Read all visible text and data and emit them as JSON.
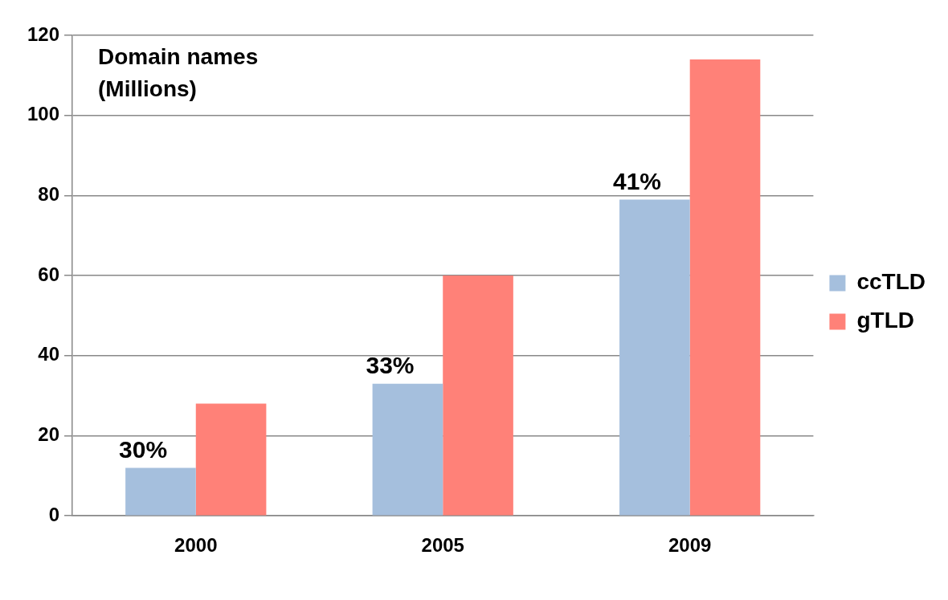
{
  "chart_data": {
    "type": "bar",
    "ylabel": "Domain names (Millions)",
    "categories": [
      "2000",
      "2005",
      "2009"
    ],
    "series": [
      {
        "name": "ccTLD",
        "color": "#a5bfdd",
        "values": [
          12,
          33,
          79
        ]
      },
      {
        "name": "gTLD",
        "color": "#ff8178",
        "values": [
          28,
          60,
          114
        ]
      }
    ],
    "annotations": [
      {
        "text": "30%",
        "x": "2000",
        "y": 12
      },
      {
        "text": "33%",
        "x": "2005",
        "y": 33
      },
      {
        "text": "41%",
        "x": "2009",
        "y": 79
      }
    ],
    "ylim": [
      0,
      120
    ],
    "yticks": [
      0,
      20,
      40,
      60,
      80,
      100,
      120
    ],
    "grid": "y",
    "legend": "right"
  }
}
